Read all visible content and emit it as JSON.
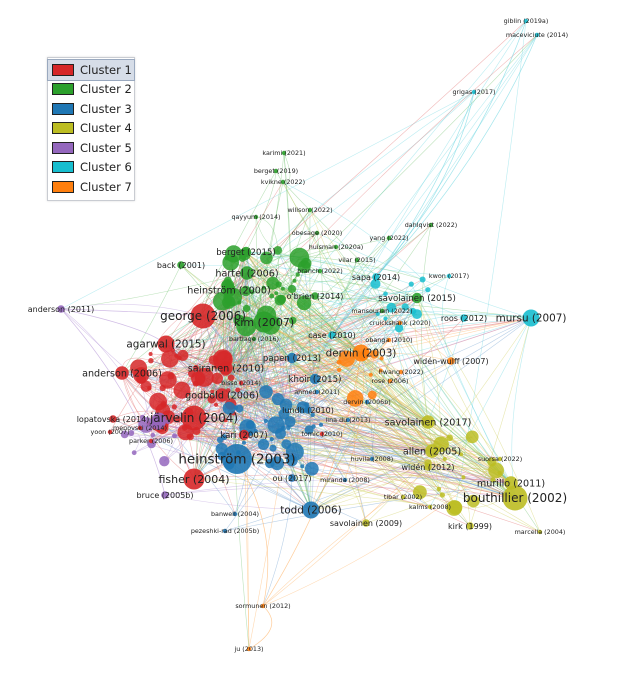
{
  "legend": [
    {
      "label": "Cluster 1",
      "color": "#d62728"
    },
    {
      "label": "Cluster 2",
      "color": "#2ca02c"
    },
    {
      "label": "Cluster 3",
      "color": "#1f77b4"
    },
    {
      "label": "Cluster 4",
      "color": "#bcbd22"
    },
    {
      "label": "Cluster 5",
      "color": "#9467bd"
    },
    {
      "label": "Cluster 6",
      "color": "#17becf"
    },
    {
      "label": "Cluster 7",
      "color": "#ff7f0e"
    }
  ],
  "nodes": [
    {
      "label": "giblin (2019a)",
      "cluster": 6,
      "weight": 1
    },
    {
      "label": "maceviciute (2014)",
      "cluster": 6,
      "weight": 1
    },
    {
      "label": "grigas (2017)",
      "cluster": 6,
      "weight": 1
    },
    {
      "label": "karimi (2021)",
      "cluster": 2,
      "weight": 1
    },
    {
      "label": "berget (2019)",
      "cluster": 2,
      "weight": 1
    },
    {
      "label": "kvikne (2022)",
      "cluster": 2,
      "weight": 1
    },
    {
      "label": "willson (2022)",
      "cluster": 2,
      "weight": 1
    },
    {
      "label": "qayyum (2014)",
      "cluster": 2,
      "weight": 1
    },
    {
      "label": "dahlqvist (2022)",
      "cluster": 2,
      "weight": 1
    },
    {
      "label": "obesage (2020)",
      "cluster": 2,
      "weight": 1
    },
    {
      "label": "yang (2022)",
      "cluster": 2,
      "weight": 1
    },
    {
      "label": "huisman (2020a)",
      "cluster": 2,
      "weight": 1
    },
    {
      "label": "vilar (2015)",
      "cluster": 2,
      "weight": 1
    },
    {
      "label": "berget (2015)",
      "cluster": 2,
      "weight": 3
    },
    {
      "label": "back (2001)",
      "cluster": 2,
      "weight": 2
    },
    {
      "label": "branch (2022)",
      "cluster": 2,
      "weight": 1
    },
    {
      "label": "sapa (2014)",
      "cluster": 6,
      "weight": 2
    },
    {
      "label": "kwon (2017)",
      "cluster": 6,
      "weight": 1
    },
    {
      "label": "hartel (2006)",
      "cluster": 2,
      "weight": 4
    },
    {
      "label": "heinström (2000)",
      "cluster": 2,
      "weight": 4
    },
    {
      "label": "o'brien (2014)",
      "cluster": 2,
      "weight": 2
    },
    {
      "label": "savolainen (2015)",
      "cluster": 2,
      "weight": 3
    },
    {
      "label": "anderson (2011)",
      "cluster": 5,
      "weight": 2
    },
    {
      "label": "george (2006)",
      "cluster": 1,
      "weight": 7
    },
    {
      "label": "mansourian (2022)",
      "cluster": 2,
      "weight": 1
    },
    {
      "label": "roos (2012)",
      "cluster": 6,
      "weight": 2
    },
    {
      "label": "mursu (2007)",
      "cluster": 6,
      "weight": 5
    },
    {
      "label": "kim (2007)",
      "cluster": 2,
      "weight": 6
    },
    {
      "label": "cruickshank (2020)",
      "cluster": 7,
      "weight": 1
    },
    {
      "label": "case (2010)",
      "cluster": 6,
      "weight": 2
    },
    {
      "label": "obanga (2010)",
      "cluster": 7,
      "weight": 1
    },
    {
      "label": "agarwal (2015)",
      "cluster": 1,
      "weight": 5
    },
    {
      "label": "bartlage (2016)",
      "cluster": 2,
      "weight": 1
    },
    {
      "label": "dervin (2003)",
      "cluster": 7,
      "weight": 5
    },
    {
      "label": "papen (2013)",
      "cluster": 3,
      "weight": 3
    },
    {
      "label": "widén-wulff (2007)",
      "cluster": 7,
      "weight": 2
    },
    {
      "label": "sairanen (2010)",
      "cluster": 1,
      "weight": 4
    },
    {
      "label": "anderson (2006)",
      "cluster": 1,
      "weight": 4
    },
    {
      "label": "bisso (2014)",
      "cluster": 1,
      "weight": 1
    },
    {
      "label": "khoir (2015)",
      "cluster": 3,
      "weight": 3
    },
    {
      "label": "rose (2006)",
      "cluster": 7,
      "weight": 1
    },
    {
      "label": "hwang (2022)",
      "cluster": 7,
      "weight": 1
    },
    {
      "label": "ahmed (2011)",
      "cluster": 3,
      "weight": 1
    },
    {
      "label": "godbold (2006)",
      "cluster": 1,
      "weight": 4
    },
    {
      "label": "dervin (2006b)",
      "cluster": 3,
      "weight": 1
    },
    {
      "label": "lina du (2013)",
      "cluster": 3,
      "weight": 1
    },
    {
      "label": "lundh (2010)",
      "cluster": 3,
      "weight": 2
    },
    {
      "label": "lopatovska (2014)",
      "cluster": 1,
      "weight": 2
    },
    {
      "label": "järvelin (2004)",
      "cluster": 1,
      "weight": 7
    },
    {
      "label": "savolainen (2017)",
      "cluster": 4,
      "weight": 4
    },
    {
      "label": "yoon (2007)",
      "cluster": 1,
      "weight": 1
    },
    {
      "label": "menovski (2014)",
      "cluster": 1,
      "weight": 1
    },
    {
      "label": "kari (2007)",
      "cluster": 1,
      "weight": 3
    },
    {
      "label": "tomic (2010)",
      "cluster": 1,
      "weight": 1
    },
    {
      "label": "parker (2006)",
      "cluster": 1,
      "weight": 1
    },
    {
      "label": "heinström (2003)",
      "cluster": 3,
      "weight": 8
    },
    {
      "label": "allen (2005)",
      "cluster": 4,
      "weight": 4
    },
    {
      "label": "huvila (2008)",
      "cluster": 3,
      "weight": 1
    },
    {
      "label": "suorsa (2022)",
      "cluster": 4,
      "weight": 1
    },
    {
      "label": "widén (2012)",
      "cluster": 4,
      "weight": 2
    },
    {
      "label": "ou (2017)",
      "cluster": 3,
      "weight": 2
    },
    {
      "label": "fisher (2004)",
      "cluster": 1,
      "weight": 6
    },
    {
      "label": "miranda (2008)",
      "cluster": 3,
      "weight": 1
    },
    {
      "label": "murillo (2011)",
      "cluster": 4,
      "weight": 4
    },
    {
      "label": "bouthillier (2002)",
      "cluster": 4,
      "weight": 7
    },
    {
      "label": "bruce (2005b)",
      "cluster": 5,
      "weight": 2
    },
    {
      "label": "tibar (2002)",
      "cluster": 4,
      "weight": 1
    },
    {
      "label": "kalms (2008)",
      "cluster": 4,
      "weight": 1
    },
    {
      "label": "banwell (2004)",
      "cluster": 3,
      "weight": 1
    },
    {
      "label": "todd (2006)",
      "cluster": 3,
      "weight": 5
    },
    {
      "label": "kirk (1999)",
      "cluster": 4,
      "weight": 2
    },
    {
      "label": "savolainen (2009)",
      "cluster": 4,
      "weight": 2
    },
    {
      "label": "marcella (2004)",
      "cluster": 4,
      "weight": 1
    },
    {
      "label": "pezeshki-rad (2005b)",
      "cluster": 3,
      "weight": 1
    },
    {
      "label": "sormunen (2012)",
      "cluster": 7,
      "weight": 1
    },
    {
      "label": "ju (2013)",
      "cluster": 7,
      "weight": 1
    }
  ]
}
